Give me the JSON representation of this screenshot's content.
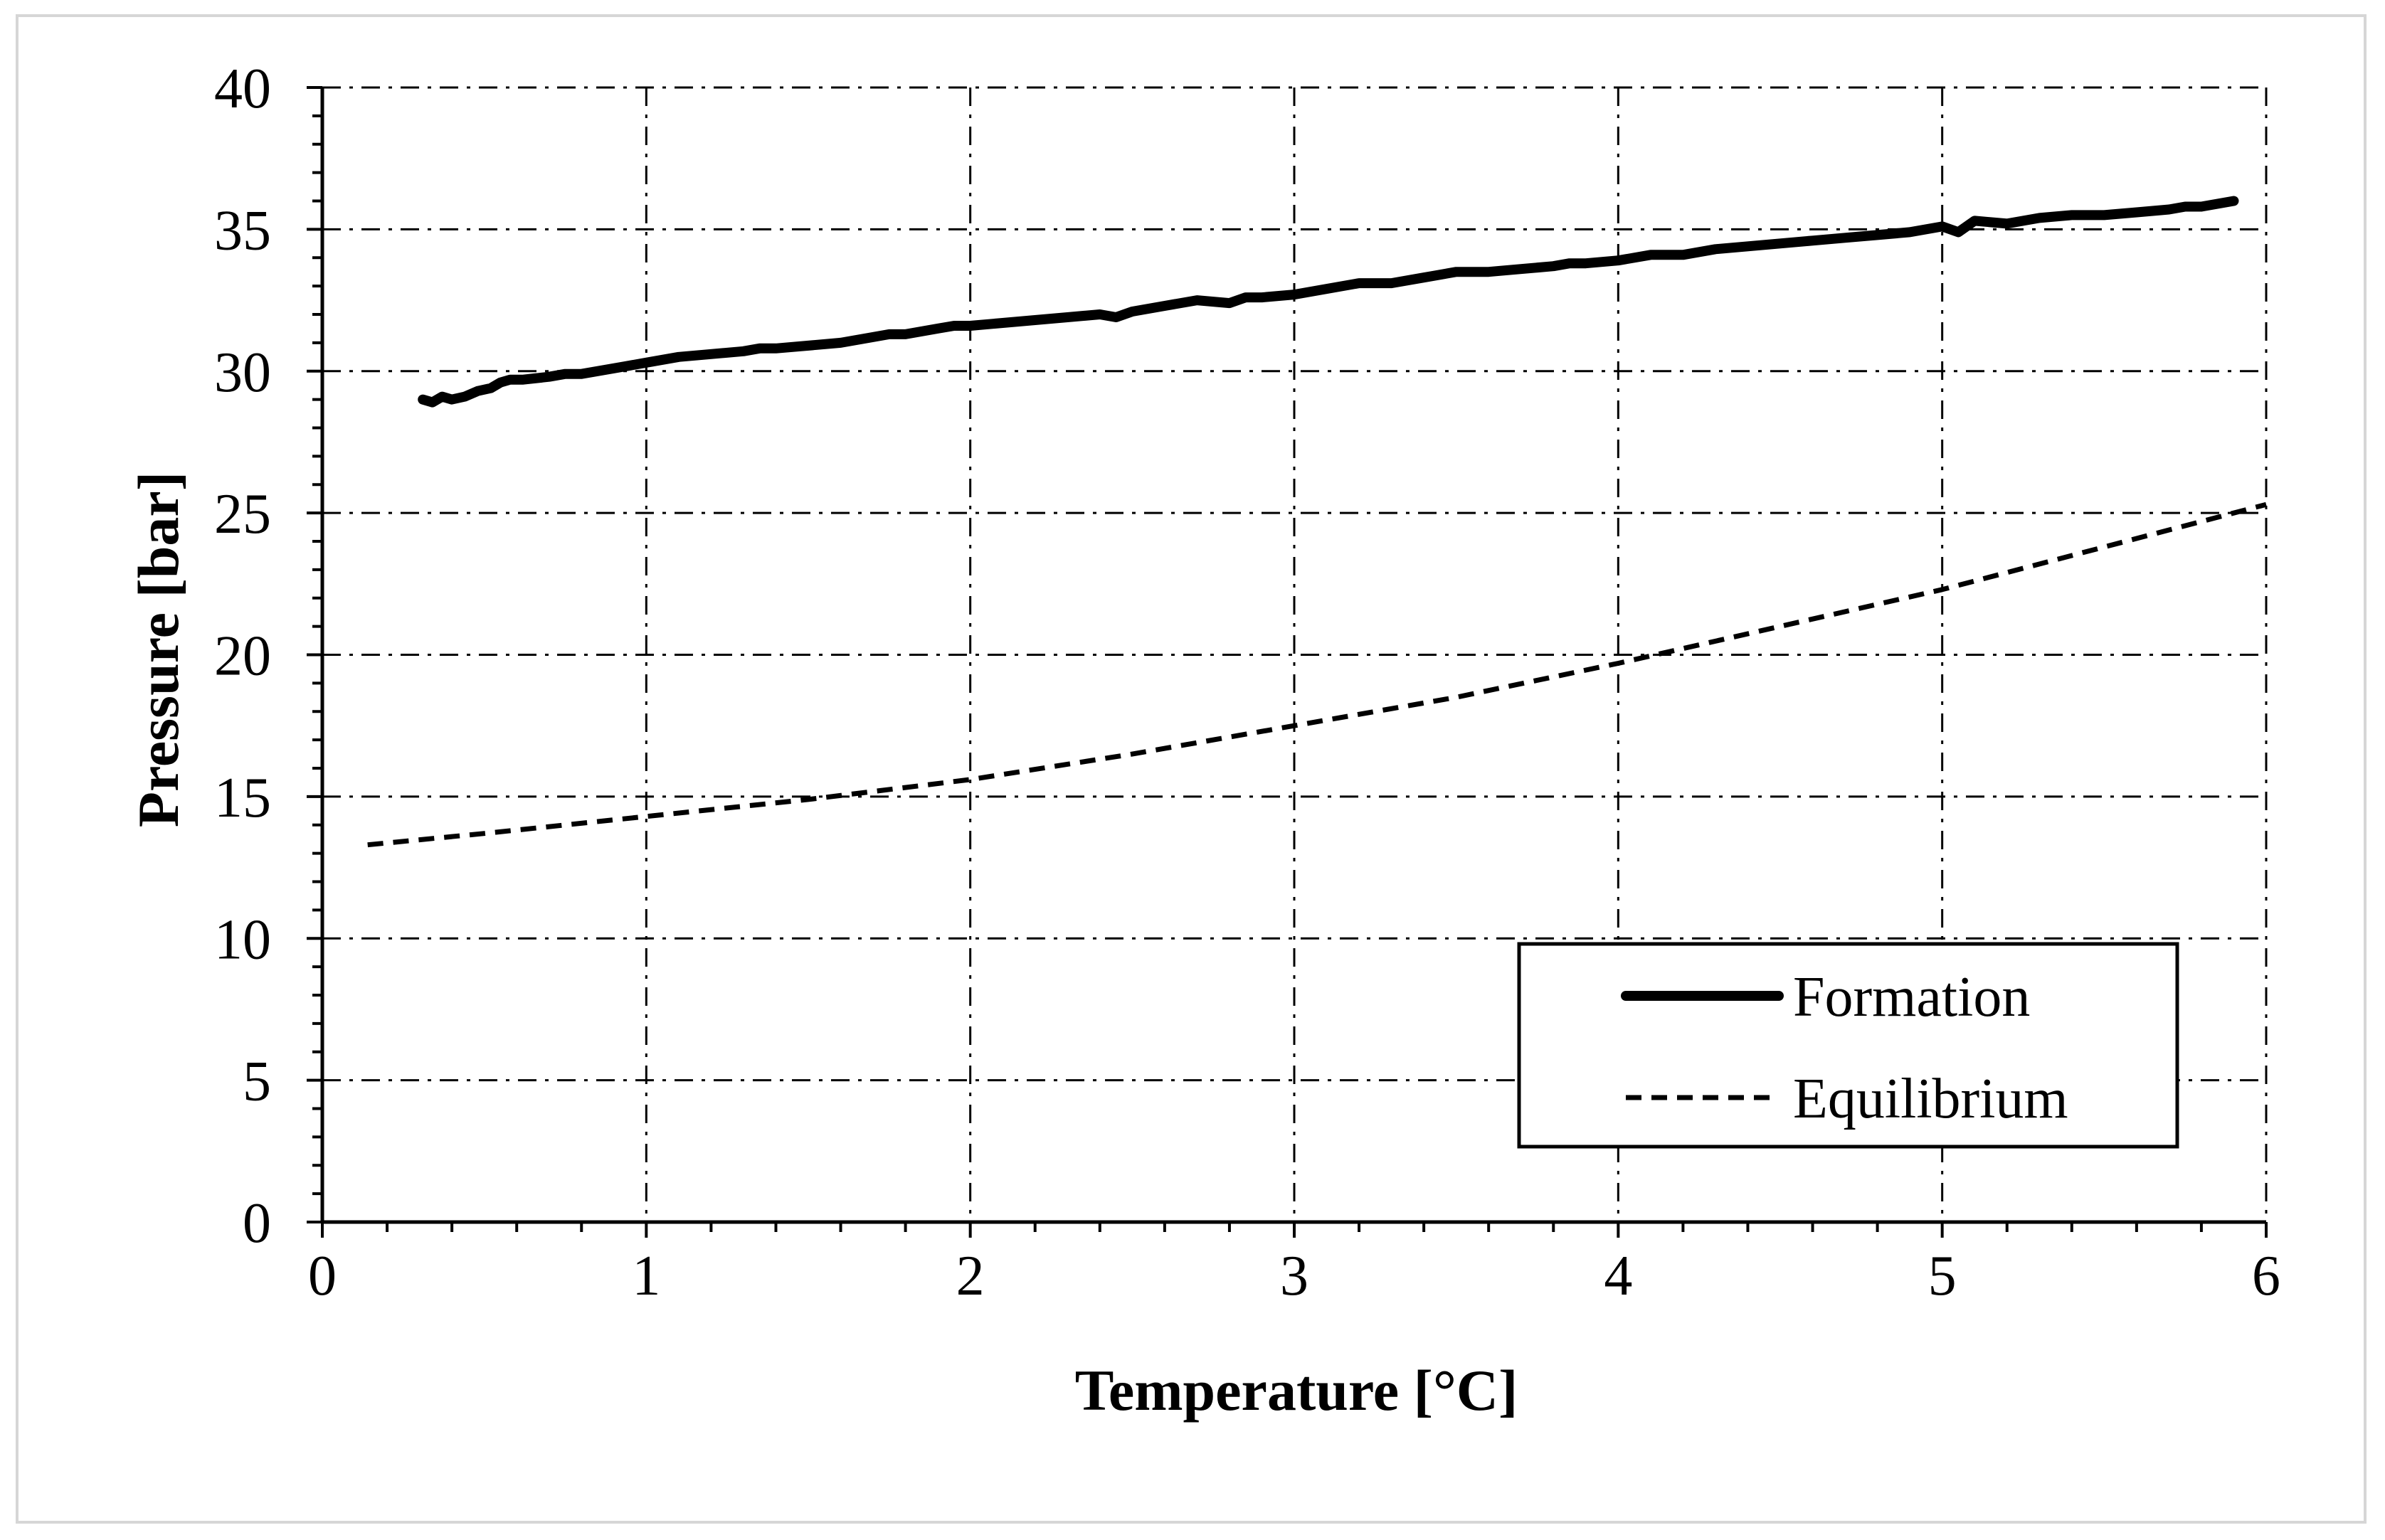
{
  "chart_data": {
    "type": "line",
    "title": "",
    "xlabel": "Temperature [°C]",
    "ylabel": "Pressure [bar]",
    "xlim": [
      0,
      6
    ],
    "ylim": [
      0,
      40
    ],
    "xticks": [
      0,
      1,
      2,
      3,
      4,
      5,
      6
    ],
    "yticks": [
      0,
      5,
      10,
      15,
      20,
      25,
      30,
      35,
      40
    ],
    "xtick_labels": [
      "0",
      "1",
      "2",
      "3",
      "4",
      "5",
      "6"
    ],
    "ytick_labels": [
      "0",
      "5",
      "10",
      "15",
      "20",
      "25",
      "30",
      "35",
      "40"
    ],
    "grid": true,
    "legend_position": "bottom-right",
    "series": [
      {
        "name": "Formation",
        "style": "solid-thick",
        "color": "#000000",
        "x": [
          0.31,
          0.34,
          0.37,
          0.4,
          0.44,
          0.48,
          0.52,
          0.55,
          0.58,
          0.62,
          0.7,
          0.75,
          0.8,
          0.9,
          0.95,
          1.0,
          1.05,
          1.1,
          1.2,
          1.3,
          1.35,
          1.4,
          1.5,
          1.6,
          1.7,
          1.75,
          1.8,
          1.9,
          1.95,
          2.0,
          2.1,
          2.2,
          2.3,
          2.4,
          2.45,
          2.5,
          2.6,
          2.7,
          2.8,
          2.85,
          2.9,
          3.0,
          3.1,
          3.2,
          3.3,
          3.4,
          3.5,
          3.6,
          3.7,
          3.8,
          3.85,
          3.9,
          4.0,
          4.1,
          4.2,
          4.3,
          4.4,
          4.5,
          4.6,
          4.7,
          4.8,
          4.9,
          5.0,
          5.05,
          5.1,
          5.2,
          5.25,
          5.3,
          5.4,
          5.5,
          5.6,
          5.7,
          5.75,
          5.8,
          5.9
        ],
        "y": [
          29.0,
          28.9,
          29.1,
          29.0,
          29.1,
          29.3,
          29.4,
          29.6,
          29.7,
          29.7,
          29.8,
          29.9,
          29.9,
          30.1,
          30.2,
          30.3,
          30.4,
          30.5,
          30.6,
          30.7,
          30.8,
          30.8,
          30.9,
          31.0,
          31.2,
          31.3,
          31.3,
          31.5,
          31.6,
          31.6,
          31.7,
          31.8,
          31.9,
          32.0,
          31.9,
          32.1,
          32.3,
          32.5,
          32.4,
          32.6,
          32.6,
          32.7,
          32.9,
          33.1,
          33.1,
          33.3,
          33.5,
          33.5,
          33.6,
          33.7,
          33.8,
          33.8,
          33.9,
          34.1,
          34.1,
          34.3,
          34.4,
          34.5,
          34.6,
          34.7,
          34.8,
          34.9,
          35.1,
          34.9,
          35.3,
          35.2,
          35.3,
          35.4,
          35.5,
          35.5,
          35.6,
          35.7,
          35.8,
          35.8,
          36.0
        ]
      },
      {
        "name": "Equilibrium",
        "style": "dashed",
        "color": "#000000",
        "x": [
          0.14,
          0.5,
          1.0,
          1.5,
          2.0,
          2.5,
          3.0,
          3.5,
          4.0,
          4.5,
          5.0,
          5.5,
          6.0
        ],
        "y": [
          13.3,
          13.7,
          14.3,
          14.9,
          15.6,
          16.5,
          17.5,
          18.5,
          19.7,
          21.0,
          22.3,
          23.8,
          25.3
        ]
      }
    ]
  }
}
